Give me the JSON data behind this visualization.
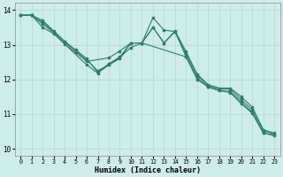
{
  "xlabel": "Humidex (Indice chaleur)",
  "xlim": [
    -0.5,
    23.5
  ],
  "ylim": [
    9.8,
    14.2
  ],
  "yticks": [
    10,
    11,
    12,
    13,
    14
  ],
  "xticks": [
    0,
    1,
    2,
    3,
    4,
    5,
    6,
    7,
    8,
    9,
    10,
    11,
    12,
    13,
    14,
    15,
    16,
    17,
    18,
    19,
    20,
    21,
    22,
    23
  ],
  "background_color": "#ceecea",
  "grid_color": "#b8dbd8",
  "line_color": "#2e7d6e",
  "series": [
    {
      "x": [
        0,
        1,
        2,
        3,
        4,
        5,
        6,
        7,
        8,
        9,
        10,
        11,
        12,
        13,
        14,
        15,
        16,
        17,
        18,
        19,
        20,
        21,
        22,
        23
      ],
      "y": [
        13.85,
        13.85,
        13.7,
        13.4,
        13.1,
        12.85,
        12.6,
        12.2,
        12.45,
        12.65,
        13.05,
        13.05,
        13.5,
        13.05,
        13.4,
        12.8,
        12.15,
        11.85,
        11.75,
        11.75,
        11.5,
        11.2,
        10.55,
        10.45
      ]
    },
    {
      "x": [
        0,
        1,
        2,
        3,
        4,
        5,
        6,
        7,
        8,
        9,
        10,
        11,
        12,
        13,
        14,
        15,
        16,
        17,
        18,
        19,
        20,
        21,
        22,
        23
      ],
      "y": [
        13.85,
        13.85,
        13.65,
        13.38,
        13.08,
        12.82,
        12.56,
        12.25,
        12.42,
        12.63,
        12.92,
        13.05,
        13.78,
        13.42,
        13.38,
        12.72,
        12.12,
        11.82,
        11.72,
        11.72,
        11.42,
        11.12,
        10.52,
        10.42
      ]
    },
    {
      "x": [
        0,
        1,
        2,
        3,
        4,
        5,
        6,
        8,
        9,
        10,
        11,
        12,
        13,
        14,
        15,
        16,
        17,
        18,
        19,
        20,
        21,
        22,
        23
      ],
      "y": [
        13.85,
        13.85,
        13.6,
        13.35,
        13.02,
        12.78,
        12.52,
        12.62,
        12.82,
        13.05,
        13.05,
        13.5,
        13.05,
        13.38,
        12.65,
        12.0,
        11.78,
        11.68,
        11.65,
        11.35,
        11.05,
        10.45,
        10.4
      ]
    },
    {
      "x": [
        0,
        1,
        2,
        3,
        6,
        7,
        8,
        9,
        10,
        11,
        15,
        16,
        17,
        18,
        19,
        20,
        21,
        22,
        23
      ],
      "y": [
        13.85,
        13.85,
        13.5,
        13.32,
        12.42,
        12.18,
        12.42,
        12.6,
        13.05,
        13.05,
        12.65,
        12.05,
        11.78,
        11.68,
        11.62,
        11.3,
        11.02,
        10.45,
        10.38
      ]
    }
  ]
}
